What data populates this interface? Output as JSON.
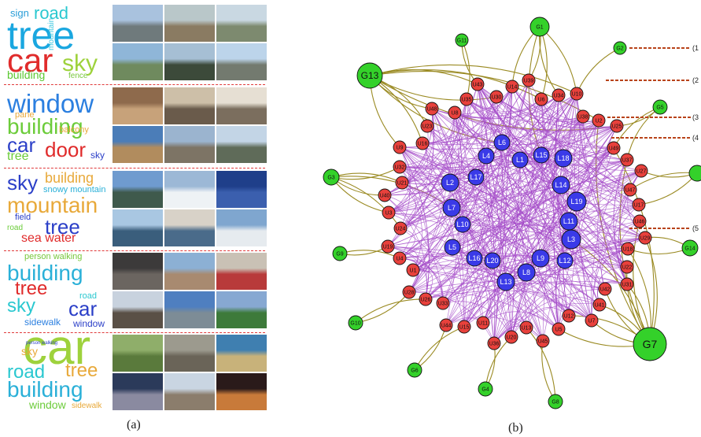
{
  "captions": {
    "a": "(a)",
    "b": "(b)"
  },
  "panels": [
    {
      "words": [
        {
          "text": "sign",
          "color": "#2a9ed8",
          "size": 13
        },
        {
          "text": "road",
          "color": "#2ac8d0",
          "size": 22
        },
        {
          "text": "tree",
          "color": "#1aa7e0",
          "size": 50
        },
        {
          "text": "car",
          "color": "#e02b2b",
          "size": 42
        },
        {
          "text": "sky",
          "color": "#9ed23c",
          "size": 30
        },
        {
          "text": "mountain",
          "color": "#3cc8e0",
          "size": 10,
          "vertical": true
        },
        {
          "text": "building",
          "color": "#5cc832",
          "size": 14
        },
        {
          "text": "fence",
          "color": "#78c83c",
          "size": 10
        }
      ],
      "images": [
        {
          "top": "#a9c2de",
          "bottom": "#6f7a7c"
        },
        {
          "top": "#b9c7c9",
          "bottom": "#8a7b62"
        },
        {
          "top": "#c9d8e2",
          "bottom": "#7d8a6f"
        },
        {
          "top": "#8fb6d8",
          "bottom": "#6f8a5e"
        },
        {
          "top": "#a6bfd4",
          "bottom": "#3c4a3a"
        },
        {
          "top": "#bcd4ea",
          "bottom": "#737a6f"
        }
      ]
    },
    {
      "words": [
        {
          "text": "window",
          "color": "#2b7fe0",
          "size": 33
        },
        {
          "text": "building",
          "color": "#6ccc3a",
          "size": 28
        },
        {
          "text": "pane",
          "color": "#e8a93a",
          "size": 11
        },
        {
          "text": "balcony",
          "color": "#e8a93a",
          "size": 11
        },
        {
          "text": "car",
          "color": "#2b3fc8",
          "size": 26
        },
        {
          "text": "door",
          "color": "#e02b2b",
          "size": 26
        },
        {
          "text": "tree",
          "color": "#6ccc3a",
          "size": 16
        },
        {
          "text": "sky",
          "color": "#2b3fc8",
          "size": 12
        }
      ],
      "images": [
        {
          "top": "#8e6a4c",
          "bottom": "#c7a27a"
        },
        {
          "top": "#cdbfa8",
          "bottom": "#6a5b4b"
        },
        {
          "top": "#e6dfd3",
          "bottom": "#7b6e5e"
        },
        {
          "top": "#4b7db8",
          "bottom": "#b18c5e"
        },
        {
          "top": "#9bb4cf",
          "bottom": "#7d7465"
        },
        {
          "top": "#c3d5e6",
          "bottom": "#5f6b59"
        }
      ]
    },
    {
      "words": [
        {
          "text": "sky",
          "color": "#2b3fc8",
          "size": 26
        },
        {
          "text": "building",
          "color": "#e8a93a",
          "size": 18
        },
        {
          "text": "snowy mountain",
          "color": "#2ab0d8",
          "size": 11
        },
        {
          "text": "mountain",
          "color": "#e8a93a",
          "size": 28
        },
        {
          "text": "field",
          "color": "#2b3fc8",
          "size": 11
        },
        {
          "text": "tree",
          "color": "#2b3fc8",
          "size": 26
        },
        {
          "text": "road",
          "color": "#6ccc3a",
          "size": 10
        },
        {
          "text": "sea water",
          "color": "#e02b2b",
          "size": 16
        }
      ],
      "images": [
        {
          "top": "#6f9bcf",
          "bottom": "#3f5a4c"
        },
        {
          "top": "#9cb8d6",
          "bottom": "#eef2f5"
        },
        {
          "top": "#1f3f8a",
          "bottom": "#3b5fae"
        },
        {
          "top": "#a9c7e2",
          "bottom": "#3a5e7c"
        },
        {
          "top": "#d8d2c8",
          "bottom": "#4a6b8a"
        },
        {
          "top": "#7fa6cf",
          "bottom": "#e6ebef"
        }
      ]
    },
    {
      "words": [
        {
          "text": "person walking",
          "color": "#78c83c",
          "size": 11
        },
        {
          "text": "building",
          "color": "#2ab0d8",
          "size": 28
        },
        {
          "text": "tree",
          "color": "#e02b2b",
          "size": 24
        },
        {
          "text": "road",
          "color": "#2ac8d0",
          "size": 11
        },
        {
          "text": "sky",
          "color": "#2ac8d0",
          "size": 24
        },
        {
          "text": "car",
          "color": "#2b3fc8",
          "size": 26
        },
        {
          "text": "sidewalk",
          "color": "#2b7fe0",
          "size": 12
        },
        {
          "text": "window",
          "color": "#2b3fc8",
          "size": 12
        }
      ],
      "images": [
        {
          "top": "#3c3a3a",
          "bottom": "#6b6560"
        },
        {
          "top": "#8cb0d4",
          "bottom": "#a88a70"
        },
        {
          "top": "#c9c1b5",
          "bottom": "#b83a3a"
        },
        {
          "top": "#c8d2de",
          "bottom": "#5a5046"
        },
        {
          "top": "#4f7fc0",
          "bottom": "#7d8c96"
        },
        {
          "top": "#87a8d2",
          "bottom": "#3d7a3a"
        }
      ]
    },
    {
      "words": [
        {
          "text": "car",
          "color": "#9ed23c",
          "size": 62
        },
        {
          "text": "person walking",
          "color": "#2b3fc8",
          "size": 6
        },
        {
          "text": "sky",
          "color": "#e8a93a",
          "size": 14
        },
        {
          "text": "road",
          "color": "#2ac8d0",
          "size": 24
        },
        {
          "text": "tree",
          "color": "#e8a93a",
          "size": 24
        },
        {
          "text": "building",
          "color": "#2ab0d8",
          "size": 28
        },
        {
          "text": "window",
          "color": "#6ccc3a",
          "size": 14
        },
        {
          "text": "sidewalk",
          "color": "#e8a93a",
          "size": 10
        }
      ],
      "images": [
        {
          "top": "#8fae6a",
          "bottom": "#5a7a3c"
        },
        {
          "top": "#9c9a8e",
          "bottom": "#6a6458"
        },
        {
          "top": "#3f7fb0",
          "bottom": "#c8b27a"
        },
        {
          "top": "#2b3a5a",
          "bottom": "#8a8aa0"
        },
        {
          "top": "#c9d5e2",
          "bottom": "#8b7d6c"
        },
        {
          "top": "#2a1a1a",
          "bottom": "#c87a3a"
        }
      ]
    }
  ],
  "graph": {
    "legend_labels": [
      "(1",
      "(2",
      "(3",
      "(4",
      "(5"
    ],
    "blue_nodes": [
      "L1",
      "L2",
      "L3",
      "L4",
      "L5",
      "L6",
      "L7",
      "L8",
      "L9",
      "L10",
      "L11",
      "L12",
      "L13",
      "L14",
      "L15",
      "L16",
      "L17",
      "L18",
      "L19",
      "L20"
    ],
    "red_nodes": [
      "U1",
      "U2",
      "U3",
      "U4",
      "U5",
      "U6",
      "U7",
      "U8",
      "U9",
      "U10",
      "U11",
      "U12",
      "U13",
      "U14",
      "U15",
      "U16",
      "U17",
      "U18",
      "U19",
      "U20",
      "U21",
      "U22",
      "U23",
      "U24",
      "U25",
      "U26",
      "U27",
      "U28",
      "U29",
      "U30",
      "U31",
      "U32",
      "U33",
      "U34",
      "U35",
      "U36",
      "U37",
      "U38",
      "U39",
      "U40",
      "U41",
      "U42",
      "U43",
      "U44",
      "U45",
      "U46",
      "U47",
      "U48",
      "U49"
    ],
    "green_nodes": [
      "G1",
      "G2",
      "G3",
      "G4",
      "G5",
      "G6",
      "G7",
      "G8",
      "G9",
      "G10",
      "G11",
      "G13",
      "G14"
    ],
    "colors": {
      "blue": "#3a3ae8",
      "red": "#e8413c",
      "green": "#34d12a",
      "edge_inner": "#a44bc8",
      "edge_outer": "#9a8a22",
      "dash": "#b8431a"
    }
  }
}
